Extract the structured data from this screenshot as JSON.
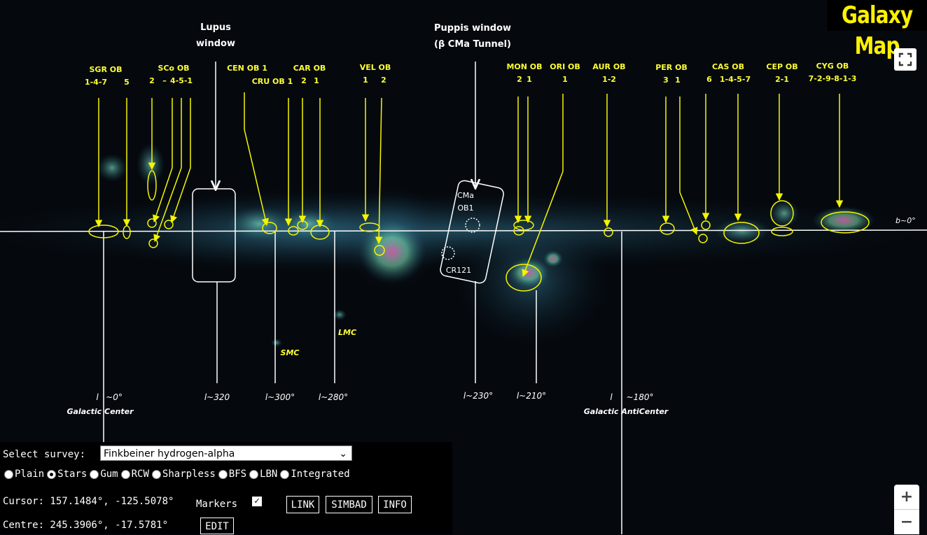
{
  "app": {
    "logo": "Galaxy Map"
  },
  "map": {
    "windows": {
      "lupus": [
        "Lupus",
        "window"
      ],
      "puppis": [
        "Puppis window",
        "(β CMa Tunnel)"
      ]
    },
    "ob_labels": [
      [
        "SGR OB",
        "1-4-7",
        "5"
      ],
      [
        "SCo OB",
        "2",
        "–",
        "4-5-1"
      ],
      [
        "CEN OB 1"
      ],
      [
        "CRU OB 1"
      ],
      [
        "CAR OB",
        "2",
        "1"
      ],
      [
        "VEL OB",
        "1",
        "2"
      ],
      [
        "MON OB",
        "2",
        "1"
      ],
      [
        "ORI OB",
        "1"
      ],
      [
        "AUR OB",
        "1-2"
      ],
      [
        "PER OB",
        "3",
        "1"
      ],
      [
        "CAS OB",
        "6",
        "1-4-5-7"
      ],
      [
        "CEP OB",
        "2-1"
      ],
      [
        "CYG OB",
        "7-2-9-8-1-3"
      ]
    ],
    "box_labels": {
      "cma": "CMa",
      "cma_num": "OB1",
      "cr": "CR121"
    },
    "clouds": {
      "smc": "SMC",
      "lmc": "LMC"
    },
    "plane_label": "b~0°",
    "longitudes": {
      "gc_mark": "l",
      "gc_value": "~0°",
      "gc_name": "Galactic  Center",
      "l320": "l~320",
      "l300": "l~300°",
      "l280": "l~280°",
      "l230": "l~230°",
      "l210": "l~210°",
      "gac_mark": "l",
      "gac_value": "~180°",
      "gac_name": "Galactic  AntiCenter"
    }
  },
  "controls": {
    "survey_label": "Select survey:",
    "survey_selected": "Finkbeiner hydrogen-alpha",
    "layers": [
      {
        "label": "Plain",
        "selected": false
      },
      {
        "label": "Stars",
        "selected": true
      },
      {
        "label": "Gum",
        "selected": false
      },
      {
        "label": "RCW",
        "selected": false
      },
      {
        "label": "Sharpless",
        "selected": false
      },
      {
        "label": "BFS",
        "selected": false
      },
      {
        "label": "LBN",
        "selected": false
      },
      {
        "label": "Integrated",
        "selected": false
      }
    ],
    "cursor": "Cursor: 157.1484°, -125.5078°",
    "centre": "Centre: 245.3906°, -17.5781°",
    "markers_label": "Markers",
    "markers_checked": "✓",
    "link_label": "LINK",
    "simbad_label": "SIMBAD",
    "info_label": "INFO",
    "edit_label": "EDIT"
  },
  "zoom": {
    "in": "+",
    "out": "−"
  },
  "colors": {
    "label_yellow": "#ffff33",
    "arrow_yellow": "#f5f500",
    "line_white": "#ffffff",
    "background": "#05090e"
  }
}
